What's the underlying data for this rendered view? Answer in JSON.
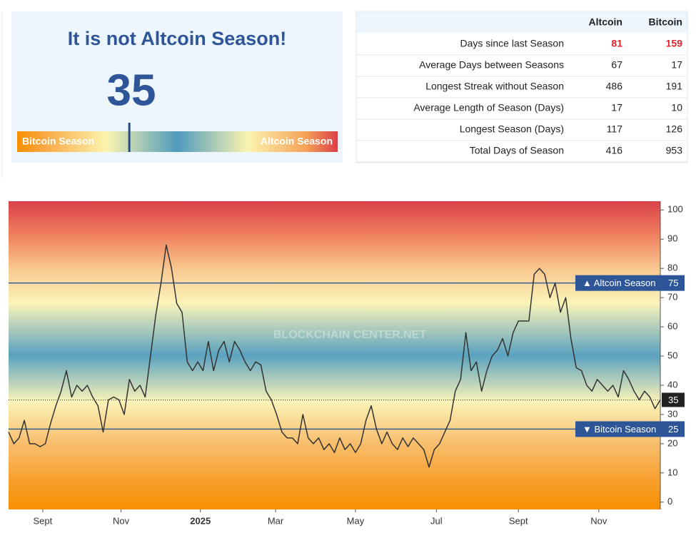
{
  "gauge": {
    "title": "It is not Altcoin Season!",
    "value": 35,
    "left_label": "Bitcoin Season",
    "right_label": "Altcoin Season"
  },
  "table": {
    "columns": [
      "Altcoin",
      "Bitcoin"
    ],
    "rows": [
      [
        "Days since last Season",
        81,
        159
      ],
      [
        "Average Days between Seasons",
        67,
        17
      ],
      [
        "Longest Streak without Season",
        486,
        191
      ],
      [
        "Average Length of Season (Days)",
        17,
        10
      ],
      [
        "Longest Season (Days)",
        117,
        126
      ],
      [
        "Total Days of Season",
        416,
        953
      ]
    ]
  },
  "chart_data": {
    "type": "line",
    "watermark": "BLOCKCHAIN CENTER.NET",
    "color": "#333333",
    "values": [
      24,
      20,
      22,
      28,
      20,
      20,
      19,
      20,
      27,
      33,
      38,
      45,
      36,
      40,
      38,
      40,
      36,
      33,
      24,
      35,
      36,
      35,
      30,
      42,
      38,
      40,
      36,
      50,
      64,
      75,
      88,
      80,
      68,
      65,
      48,
      45,
      48,
      45,
      55,
      45,
      52,
      55,
      48,
      55,
      52,
      48,
      45,
      48,
      47,
      38,
      35,
      30,
      24,
      22,
      22,
      20,
      30,
      22,
      20,
      22,
      18,
      20,
      17,
      22,
      18,
      20,
      17,
      20,
      28,
      33,
      25,
      20,
      24,
      20,
      18,
      22,
      19,
      22,
      20,
      18,
      12,
      18,
      20,
      24,
      28,
      38,
      42,
      58,
      45,
      48,
      38,
      45,
      50,
      52,
      56,
      50,
      58,
      62,
      62,
      62,
      78,
      80,
      78,
      70,
      75,
      65,
      70,
      56,
      46,
      45,
      40,
      38,
      42,
      40,
      38,
      40,
      36,
      45,
      42,
      38,
      35,
      38,
      36,
      32,
      35
    ],
    "xlim": [
      0,
      124
    ],
    "xticks": [
      {
        "value": 6.5,
        "label": "Sept"
      },
      {
        "value": 21.4,
        "label": "Nov"
      },
      {
        "value": 36.5,
        "label": "2025"
      },
      {
        "value": 50.8,
        "label": "Mar"
      },
      {
        "value": 66,
        "label": "May"
      },
      {
        "value": 81.4,
        "label": "Jul"
      },
      {
        "value": 97,
        "label": "Sept"
      },
      {
        "value": 112.3,
        "label": "Nov"
      }
    ],
    "ylim": [
      -2.5,
      103
    ],
    "yticks": [
      0,
      10,
      20,
      30,
      40,
      50,
      60,
      70,
      80,
      90,
      100
    ],
    "annotations": [
      {
        "label": "▲ Altcoin Season",
        "value": 75
      },
      {
        "label": "▼ Bitcoin Season",
        "value": 25
      }
    ],
    "current": 35
  }
}
